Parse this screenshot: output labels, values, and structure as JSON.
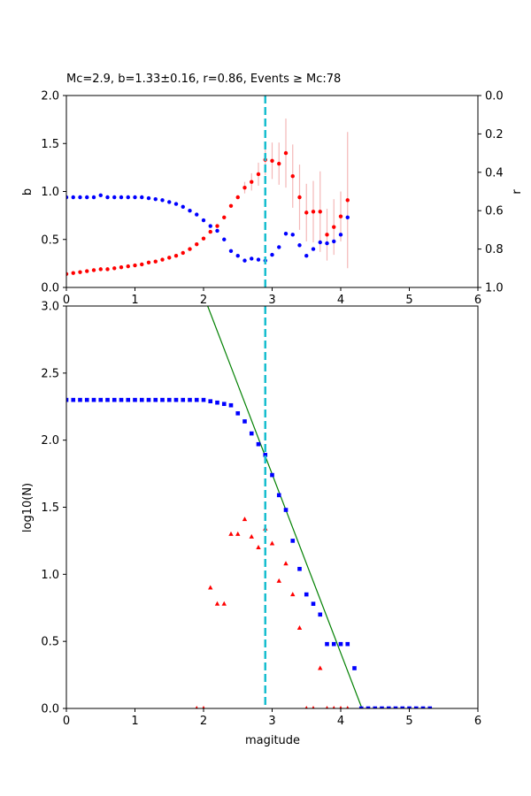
{
  "chart_data": [
    {
      "type": "scatter",
      "title": "Mc=2.9, b=1.33±0.16, r=0.86, Events ≥ Mc:78",
      "xlabel": "",
      "ylabel": "b",
      "y2label": "r",
      "xlim": [
        0,
        6
      ],
      "ylim": [
        0,
        2
      ],
      "y2lim": [
        1.0,
        0.0
      ],
      "x_ticks": [
        "0",
        "1",
        "2",
        "3",
        "4",
        "5",
        "6"
      ],
      "y_ticks": [
        "0.0",
        "0.5",
        "1.0",
        "1.5",
        "2.0"
      ],
      "y2_ticks": [
        "0.0",
        "0.2",
        "0.4",
        "0.6",
        "0.8",
        "1.0"
      ],
      "mc_line": {
        "x": 2.9,
        "color": "#17becf"
      },
      "series": [
        {
          "axis": "left",
          "marker": "circle",
          "color": "#ff0000",
          "errorbar_color": "#f4b8b8",
          "points": [
            [
              0.0,
              0.14
            ],
            [
              0.1,
              0.15
            ],
            [
              0.2,
              0.16
            ],
            [
              0.3,
              0.17
            ],
            [
              0.4,
              0.18
            ],
            [
              0.5,
              0.19
            ],
            [
              0.6,
              0.19
            ],
            [
              0.7,
              0.2
            ],
            [
              0.8,
              0.21
            ],
            [
              0.9,
              0.22
            ],
            [
              1.0,
              0.23
            ],
            [
              1.1,
              0.24
            ],
            [
              1.2,
              0.26
            ],
            [
              1.3,
              0.27
            ],
            [
              1.4,
              0.29
            ],
            [
              1.5,
              0.31
            ],
            [
              1.6,
              0.33
            ],
            [
              1.7,
              0.36
            ],
            [
              1.8,
              0.4
            ],
            [
              1.9,
              0.45
            ],
            [
              2.0,
              0.51
            ],
            [
              2.1,
              0.58
            ],
            [
              2.2,
              0.64
            ],
            [
              2.3,
              0.73
            ],
            [
              2.4,
              0.85
            ],
            [
              2.5,
              0.94
            ],
            [
              2.6,
              1.04
            ],
            [
              2.7,
              1.1
            ],
            [
              2.8,
              1.18
            ],
            [
              2.9,
              1.33
            ],
            [
              3.0,
              1.32
            ],
            [
              3.1,
              1.29
            ],
            [
              3.2,
              1.4
            ],
            [
              3.3,
              1.16
            ],
            [
              3.4,
              0.94
            ],
            [
              3.5,
              0.78
            ],
            [
              3.6,
              0.79
            ],
            [
              3.7,
              0.79
            ],
            [
              3.8,
              0.55
            ],
            [
              3.9,
              0.63
            ],
            [
              4.0,
              0.74
            ],
            [
              4.1,
              0.91
            ]
          ],
          "errors": [
            [
              2.6,
              0.06
            ],
            [
              2.7,
              0.09
            ],
            [
              2.8,
              0.12
            ],
            [
              2.9,
              0.16
            ],
            [
              3.0,
              0.19
            ],
            [
              3.1,
              0.22
            ],
            [
              3.2,
              0.36
            ],
            [
              3.3,
              0.33
            ],
            [
              3.4,
              0.34
            ],
            [
              3.5,
              0.3
            ],
            [
              3.6,
              0.32
            ],
            [
              3.7,
              0.42
            ],
            [
              3.8,
              0.27
            ],
            [
              3.9,
              0.29
            ],
            [
              4.0,
              0.26
            ],
            [
              4.1,
              0.71
            ]
          ]
        },
        {
          "axis": "right",
          "marker": "circle",
          "color": "#0000ff",
          "points": [
            [
              0.0,
              0.53
            ],
            [
              0.1,
              0.53
            ],
            [
              0.2,
              0.53
            ],
            [
              0.3,
              0.53
            ],
            [
              0.4,
              0.53
            ],
            [
              0.5,
              0.52
            ],
            [
              0.6,
              0.53
            ],
            [
              0.7,
              0.53
            ],
            [
              0.8,
              0.53
            ],
            [
              0.9,
              0.53
            ],
            [
              1.0,
              0.53
            ],
            [
              1.1,
              0.53
            ],
            [
              1.2,
              0.535
            ],
            [
              1.3,
              0.54
            ],
            [
              1.4,
              0.545
            ],
            [
              1.5,
              0.555
            ],
            [
              1.6,
              0.565
            ],
            [
              1.7,
              0.58
            ],
            [
              1.8,
              0.6
            ],
            [
              1.9,
              0.62
            ],
            [
              2.0,
              0.65
            ],
            [
              2.1,
              0.68
            ],
            [
              2.2,
              0.705
            ],
            [
              2.3,
              0.75
            ],
            [
              2.4,
              0.81
            ],
            [
              2.5,
              0.835
            ],
            [
              2.6,
              0.86
            ],
            [
              2.7,
              0.85
            ],
            [
              2.8,
              0.855
            ],
            [
              2.9,
              0.86
            ],
            [
              3.0,
              0.83
            ],
            [
              3.1,
              0.79
            ],
            [
              3.2,
              0.72
            ],
            [
              3.3,
              0.725
            ],
            [
              3.4,
              0.78
            ],
            [
              3.5,
              0.835
            ],
            [
              3.6,
              0.8
            ],
            [
              3.7,
              0.765
            ],
            [
              3.8,
              0.77
            ],
            [
              3.9,
              0.76
            ],
            [
              4.0,
              0.725
            ],
            [
              4.1,
              0.635
            ]
          ]
        }
      ]
    },
    {
      "type": "scatter",
      "title": "",
      "xlabel": "magitude",
      "ylabel": "log10(N)",
      "xlim": [
        0,
        6
      ],
      "ylim": [
        0,
        3
      ],
      "x_ticks": [
        "0",
        "1",
        "2",
        "3",
        "4",
        "5",
        "6"
      ],
      "y_ticks": [
        "0.0",
        "0.5",
        "1.0",
        "1.5",
        "2.0",
        "2.5",
        "3.0"
      ],
      "mc_line": {
        "x": 2.9,
        "color": "#17becf"
      },
      "fit_line": {
        "color": "#008000",
        "points": [
          [
            2.06,
            3.0
          ],
          [
            4.31,
            0.0
          ]
        ]
      },
      "series": [
        {
          "name": "",
          "marker": "square",
          "color": "#0000ff",
          "points": [
            [
              0.0,
              2.3
            ],
            [
              0.1,
              2.3
            ],
            [
              0.2,
              2.3
            ],
            [
              0.3,
              2.3
            ],
            [
              0.4,
              2.3
            ],
            [
              0.5,
              2.3
            ],
            [
              0.6,
              2.3
            ],
            [
              0.7,
              2.3
            ],
            [
              0.8,
              2.3
            ],
            [
              0.9,
              2.3
            ],
            [
              1.0,
              2.3
            ],
            [
              1.1,
              2.3
            ],
            [
              1.2,
              2.3
            ],
            [
              1.3,
              2.3
            ],
            [
              1.4,
              2.3
            ],
            [
              1.5,
              2.3
            ],
            [
              1.6,
              2.3
            ],
            [
              1.7,
              2.3
            ],
            [
              1.8,
              2.3
            ],
            [
              1.9,
              2.3
            ],
            [
              2.0,
              2.3
            ],
            [
              2.1,
              2.29
            ],
            [
              2.2,
              2.28
            ],
            [
              2.3,
              2.27
            ],
            [
              2.4,
              2.26
            ],
            [
              2.5,
              2.2
            ],
            [
              2.6,
              2.14
            ],
            [
              2.7,
              2.05
            ],
            [
              2.8,
              1.97
            ],
            [
              2.9,
              1.89
            ],
            [
              3.0,
              1.74
            ],
            [
              3.1,
              1.59
            ],
            [
              3.2,
              1.48
            ],
            [
              3.3,
              1.25
            ],
            [
              3.4,
              1.04
            ],
            [
              3.5,
              0.85
            ],
            [
              3.6,
              0.78
            ],
            [
              3.7,
              0.7
            ],
            [
              3.8,
              0.48
            ],
            [
              3.9,
              0.48
            ],
            [
              4.0,
              0.48
            ],
            [
              4.1,
              0.48
            ],
            [
              4.2,
              0.3
            ],
            [
              4.3,
              0.0
            ],
            [
              4.4,
              0.0
            ],
            [
              4.5,
              0.0
            ],
            [
              4.6,
              0.0
            ],
            [
              4.7,
              0.0
            ],
            [
              4.8,
              0.0
            ],
            [
              4.9,
              0.0
            ],
            [
              5.0,
              0.0
            ],
            [
              5.1,
              0.0
            ],
            [
              5.2,
              0.0
            ],
            [
              5.3,
              0.0
            ]
          ]
        },
        {
          "name": "",
          "marker": "triangle",
          "color": "#ff0000",
          "points": [
            [
              1.9,
              0.0
            ],
            [
              2.0,
              0.0
            ],
            [
              2.1,
              0.9
            ],
            [
              2.2,
              0.78
            ],
            [
              2.3,
              0.78
            ],
            [
              2.4,
              1.3
            ],
            [
              2.5,
              1.3
            ],
            [
              2.6,
              1.41
            ],
            [
              2.7,
              1.28
            ],
            [
              2.8,
              1.2
            ],
            [
              2.9,
              1.34
            ],
            [
              3.0,
              1.23
            ],
            [
              3.1,
              0.95
            ],
            [
              3.2,
              1.08
            ],
            [
              3.3,
              0.85
            ],
            [
              3.4,
              0.6
            ],
            [
              3.5,
              0.0
            ],
            [
              3.6,
              0.0
            ],
            [
              3.7,
              0.3
            ],
            [
              3.8,
              0.0
            ],
            [
              3.9,
              0.0
            ],
            [
              4.0,
              0.0
            ],
            [
              4.1,
              0.0
            ]
          ]
        }
      ]
    }
  ]
}
